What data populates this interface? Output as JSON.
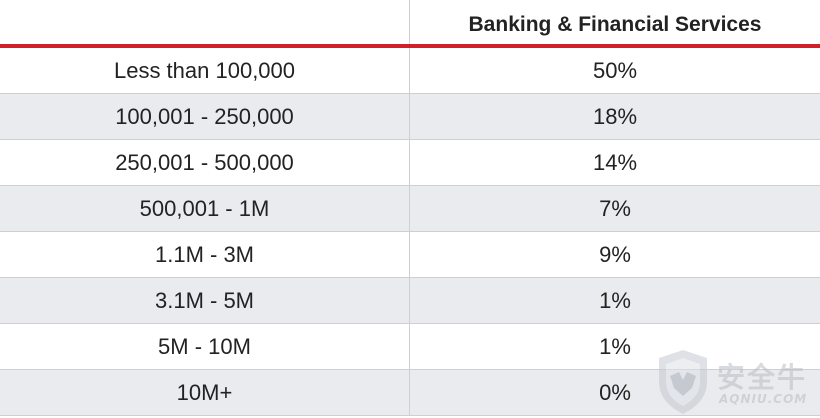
{
  "chart_data": {
    "type": "table",
    "columns": [
      "",
      "Banking & Financial Services"
    ],
    "rows": [
      {
        "category": "Less than 100,000",
        "value": "50%"
      },
      {
        "category": "100,001 - 250,000",
        "value": "18%"
      },
      {
        "category": "250,001 - 500,000",
        "value": "14%"
      },
      {
        "category": "500,001 - 1M",
        "value": "7%"
      },
      {
        "category": "1.1M - 3M",
        "value": "9%"
      },
      {
        "category": "3.1M - 5M",
        "value": "1%"
      },
      {
        "category": "5M - 10M",
        "value": "1%"
      },
      {
        "category": "10M+",
        "value": "0%"
      }
    ]
  },
  "watermark": {
    "text": "安全牛",
    "subtext": "AQNIU.COM"
  },
  "colors": {
    "accent_rule": "#d0202a",
    "alt_row": "#e9ebee",
    "grid": "#cfcfcf"
  }
}
